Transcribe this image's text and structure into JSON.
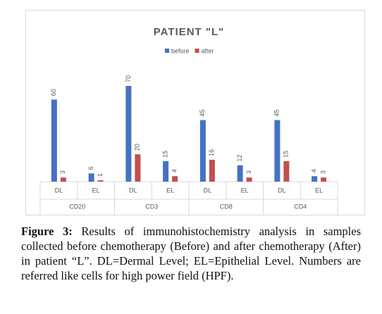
{
  "chart_data": {
    "type": "bar",
    "title": "PATIENT \"L\"",
    "groups": [
      "CD20",
      "CD3",
      "CD8",
      "CD4"
    ],
    "categories": [
      "DL",
      "EL",
      "DL",
      "EL",
      "DL",
      "EL",
      "DL",
      "EL"
    ],
    "series": [
      {
        "name": "before",
        "color": "#4472c4",
        "values": [
          60,
          6,
          70,
          15,
          45,
          12,
          45,
          4
        ]
      },
      {
        "name": "after",
        "color": "#c0504d",
        "values": [
          3,
          1,
          20,
          4,
          16,
          3,
          15,
          3
        ]
      }
    ]
  },
  "caption": {
    "label": "Figure 3:",
    "text": "Results of immunohistochemistry analysis in samples collected before chemotherapy (Before) and after chemotherapy (After) in patient “L”. DL=Dermal Level; EL=Epithelial Level. Numbers are referred like cells for high power field (HPF)."
  }
}
